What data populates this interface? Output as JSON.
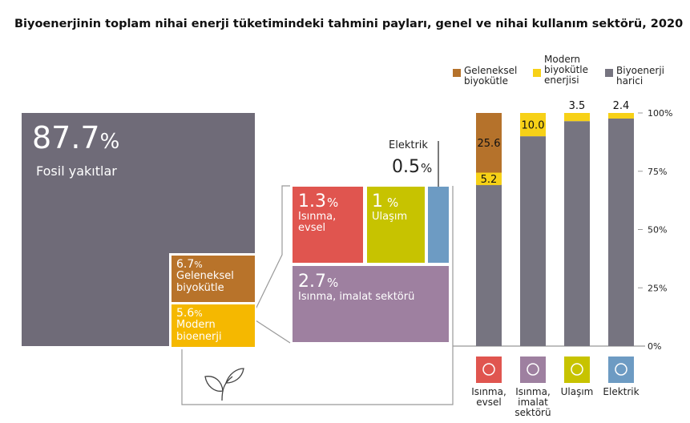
{
  "title": "Biyoenerjinin toplam nihai enerji tüketimindeki tahmini payları, genel ve nihai kullanım sektörü, 2020",
  "unit": "%",
  "shares": [
    {
      "value": 87.7,
      "label": "Fosil yakıtlar"
    },
    {
      "value": 6.7,
      "label": "Geleneksel biyokütle"
    },
    {
      "value": 5.6,
      "label": "Modern bioenerji"
    },
    {
      "value": 1.3,
      "label": "Isınma, evsel"
    },
    {
      "value": 1.0,
      "label": "Ulaşım"
    },
    {
      "value": 0.5,
      "label": "Elektrik"
    },
    {
      "value": 2.7,
      "label": "Isınma, imalat sektörü"
    }
  ],
  "chart_data": {
    "type": "stacked_bar",
    "categories": [
      "Isınma, evsel",
      "Isınma, imalat sektörü",
      "Ulaşım",
      "Elektrik"
    ],
    "category_colors": [
      "#e0554f",
      "#9e80a0",
      "#c7c300",
      "#6d9bc3"
    ],
    "series": [
      {
        "name": "Biyoenerji harici",
        "color": "#767480",
        "values": [
          69.2,
          90.0,
          96.5,
          97.6
        ],
        "show_labels": false
      },
      {
        "name": "Modern biyokütle enerjisi",
        "color": "#f7d117",
        "values": [
          5.2,
          10.0,
          3.5,
          2.4
        ],
        "value_labels": [
          "5.2",
          "10.0",
          "3.5",
          "2.4"
        ],
        "show_labels": true
      },
      {
        "name": "Geleneksel biyokütle",
        "color": "#b5722b",
        "values": [
          25.6,
          null,
          null,
          null
        ],
        "show_labels": true
      }
    ],
    "ylim": [
      0,
      100
    ],
    "yticks": [
      {
        "value": 0,
        "label": "0%"
      },
      {
        "value": 25,
        "label": "25%"
      },
      {
        "value": 50,
        "label": "50%"
      },
      {
        "value": 75,
        "label": "75%"
      },
      {
        "value": 100,
        "label": "100%"
      }
    ]
  }
}
